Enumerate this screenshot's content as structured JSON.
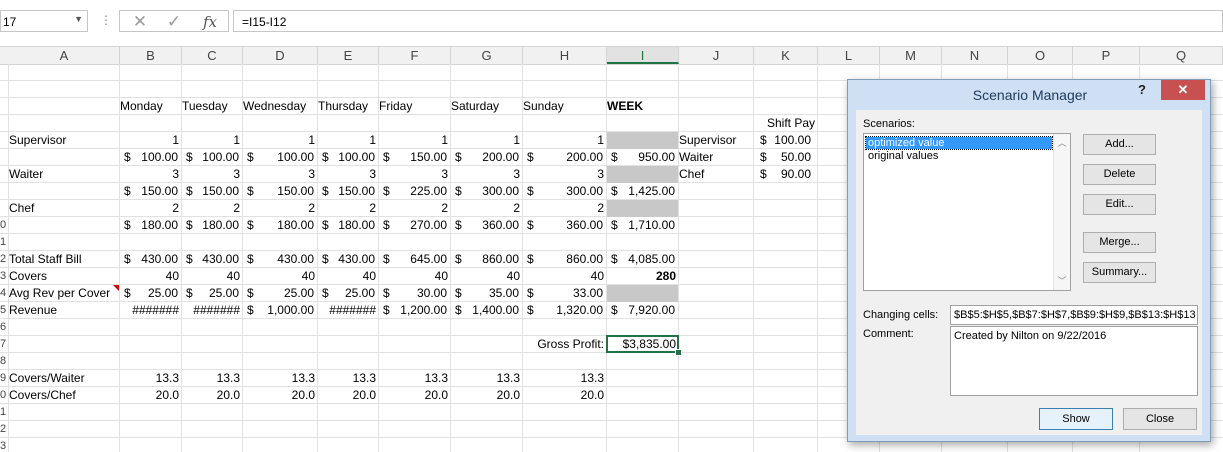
{
  "formula_bar": {
    "name_box": "17",
    "cancel_icon": "x-icon",
    "enter_icon": "check-icon",
    "fx_label": "fx",
    "formula": "=I15-I12"
  },
  "columns": [
    "A",
    "B",
    "C",
    "D",
    "E",
    "F",
    "G",
    "H",
    "I",
    "J",
    "K",
    "L",
    "M",
    "N",
    "O",
    "P",
    "Q"
  ],
  "row_numbers": [
    "0",
    "1",
    "2",
    "3",
    "4",
    "5",
    "6",
    "7",
    "8",
    "9",
    "0",
    "1",
    "2",
    "3"
  ],
  "sheet": {
    "days": [
      "Monday",
      "Tuesday",
      "Wednesday",
      "Thursday",
      "Friday",
      "Saturday",
      "Sunday",
      "WEEK"
    ],
    "shift_pay_label": "Shift Pay",
    "rows": {
      "supervisor": {
        "label": "Supervisor",
        "counts": [
          "1",
          "1",
          "1",
          "1",
          "1",
          "1",
          "1"
        ],
        "cost": [
          [
            "$",
            "100.00"
          ],
          [
            "$",
            "100.00"
          ],
          [
            "$",
            "100.00"
          ],
          [
            "$",
            "100.00"
          ],
          [
            "$",
            "150.00"
          ],
          [
            "$",
            "200.00"
          ],
          [
            "$",
            "200.00"
          ],
          [
            "$",
            "950.00"
          ]
        ]
      },
      "waiter": {
        "label": "Waiter",
        "counts": [
          "3",
          "3",
          "3",
          "3",
          "3",
          "3",
          "3"
        ],
        "cost": [
          [
            "$",
            "150.00"
          ],
          [
            "$",
            "150.00"
          ],
          [
            "$",
            "150.00"
          ],
          [
            "$",
            "150.00"
          ],
          [
            "$",
            "225.00"
          ],
          [
            "$",
            "300.00"
          ],
          [
            "$",
            "300.00"
          ],
          [
            "$",
            "1,425.00"
          ]
        ]
      },
      "chef": {
        "label": "Chef",
        "counts": [
          "2",
          "2",
          "2",
          "2",
          "2",
          "2",
          "2"
        ],
        "cost": [
          [
            "$",
            "180.00"
          ],
          [
            "$",
            "180.00"
          ],
          [
            "$",
            "180.00"
          ],
          [
            "$",
            "180.00"
          ],
          [
            "$",
            "270.00"
          ],
          [
            "$",
            "360.00"
          ],
          [
            "$",
            "360.00"
          ],
          [
            "$",
            "1,710.00"
          ]
        ]
      },
      "total_staff": {
        "label": "Total Staff Bill",
        "cost": [
          [
            "$",
            "430.00"
          ],
          [
            "$",
            "430.00"
          ],
          [
            "$",
            "430.00"
          ],
          [
            "$",
            "430.00"
          ],
          [
            "$",
            "645.00"
          ],
          [
            "$",
            "860.00"
          ],
          [
            "$",
            "860.00"
          ],
          [
            "$",
            "4,085.00"
          ]
        ]
      },
      "covers": {
        "label": "Covers",
        "values": [
          "40",
          "40",
          "40",
          "40",
          "40",
          "40",
          "40",
          "280"
        ]
      },
      "avg_rev": {
        "label": "Avg Rev per Cover",
        "cost": [
          [
            "$",
            "25.00"
          ],
          [
            "$",
            "25.00"
          ],
          [
            "$",
            "25.00"
          ],
          [
            "$",
            "25.00"
          ],
          [
            "$",
            "30.00"
          ],
          [
            "$",
            "35.00"
          ],
          [
            "$",
            "33.00"
          ]
        ]
      },
      "revenue": {
        "label": "Revenue",
        "cost": [
          [
            "",
            "#######"
          ],
          [
            "",
            "#######"
          ],
          [
            "$",
            "1,000.00"
          ],
          [
            "",
            "#######"
          ],
          [
            "$",
            "1,200.00"
          ],
          [
            "$",
            "1,400.00"
          ],
          [
            "$",
            "1,320.00"
          ],
          [
            "$",
            "7,920.00"
          ]
        ]
      },
      "gross_profit": {
        "label": "Gross Profit:",
        "value": "$3,835.00"
      },
      "covers_waiter": {
        "label": "Covers/Waiter",
        "values": [
          "13.3",
          "13.3",
          "13.3",
          "13.3",
          "13.3",
          "13.3",
          "13.3"
        ]
      },
      "covers_chef": {
        "label": "Covers/Chef",
        "values": [
          "20.0",
          "20.0",
          "20.0",
          "20.0",
          "20.0",
          "20.0",
          "20.0"
        ]
      }
    },
    "shift_table": [
      {
        "role": "Supervisor",
        "sym": "$",
        "amt": "100.00"
      },
      {
        "role": "Waiter",
        "sym": "$",
        "amt": "50.00"
      },
      {
        "role": "Chef",
        "sym": "$",
        "amt": "90.00"
      }
    ]
  },
  "dialog": {
    "title": "Scenario Manager",
    "help": "?",
    "close": "✕",
    "scenarios_label": "Scenarios:",
    "scenarios": [
      "optimized value",
      "original values"
    ],
    "buttons": [
      "Add...",
      "Delete",
      "Edit...",
      "Merge...",
      "Summary..."
    ],
    "changing_cells_label": "Changing cells:",
    "changing_cells": "$B$5:$H$5,$B$7:$H$7,$B$9:$H$9,$B$13:$H$13",
    "comment_label": "Comment:",
    "comment": "Created by Nilton on 9/22/2016",
    "show": "Show",
    "close_btn": "Close"
  }
}
